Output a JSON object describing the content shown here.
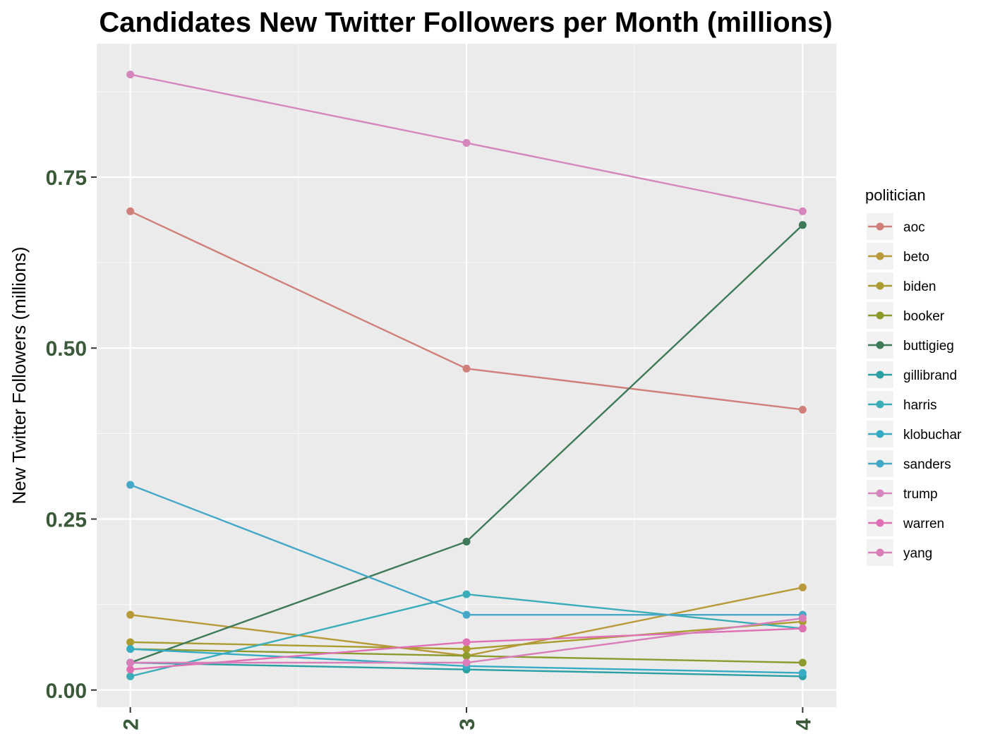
{
  "chart_data": {
    "type": "line",
    "title": "Candidates New Twitter Followers per Month (millions)",
    "xlabel": "",
    "ylabel": "New Twitter Followers (millions)",
    "x": [
      2,
      3,
      4
    ],
    "x_tick_labels": [
      "2",
      "3",
      "4"
    ],
    "xlim": [
      1.9,
      4.1
    ],
    "ylim": [
      -0.025,
      0.945
    ],
    "y_ticks": [
      0.0,
      0.25,
      0.5,
      0.75
    ],
    "y_tick_labels": [
      "0.00",
      "0.25",
      "0.50",
      "0.75"
    ],
    "grid": true,
    "legend_title": "politician",
    "legend_position": "right",
    "series": [
      {
        "name": "aoc",
        "color": "#d0807a",
        "values": [
          0.7,
          0.47,
          0.41
        ]
      },
      {
        "name": "beto",
        "color": "#b89a3a",
        "values": [
          0.11,
          0.05,
          0.15
        ]
      },
      {
        "name": "biden",
        "color": "#aa9c2e",
        "values": [
          0.07,
          0.06,
          0.1
        ]
      },
      {
        "name": "booker",
        "color": "#8f9a2e",
        "values": [
          0.06,
          0.05,
          0.04
        ]
      },
      {
        "name": "buttigieg",
        "color": "#3e7a58",
        "values": [
          0.04,
          0.217,
          0.68
        ]
      },
      {
        "name": "gillibrand",
        "color": "#2aa0a4",
        "values": [
          0.04,
          0.03,
          0.02
        ]
      },
      {
        "name": "harris",
        "color": "#3aadb8",
        "values": [
          0.02,
          0.14,
          0.09
        ]
      },
      {
        "name": "klobuchar",
        "color": "#36acc4",
        "values": [
          0.06,
          0.035,
          0.025
        ]
      },
      {
        "name": "sanders",
        "color": "#44a8c6",
        "values": [
          0.3,
          0.11,
          0.11
        ]
      },
      {
        "name": "trump",
        "color": "#d586bc",
        "values": [
          0.9,
          0.8,
          0.7
        ]
      },
      {
        "name": "warren",
        "color": "#e070b4",
        "values": [
          0.03,
          0.07,
          0.09
        ]
      },
      {
        "name": "yang",
        "color": "#d87eb8",
        "values": [
          0.04,
          0.04,
          0.105
        ]
      }
    ]
  }
}
